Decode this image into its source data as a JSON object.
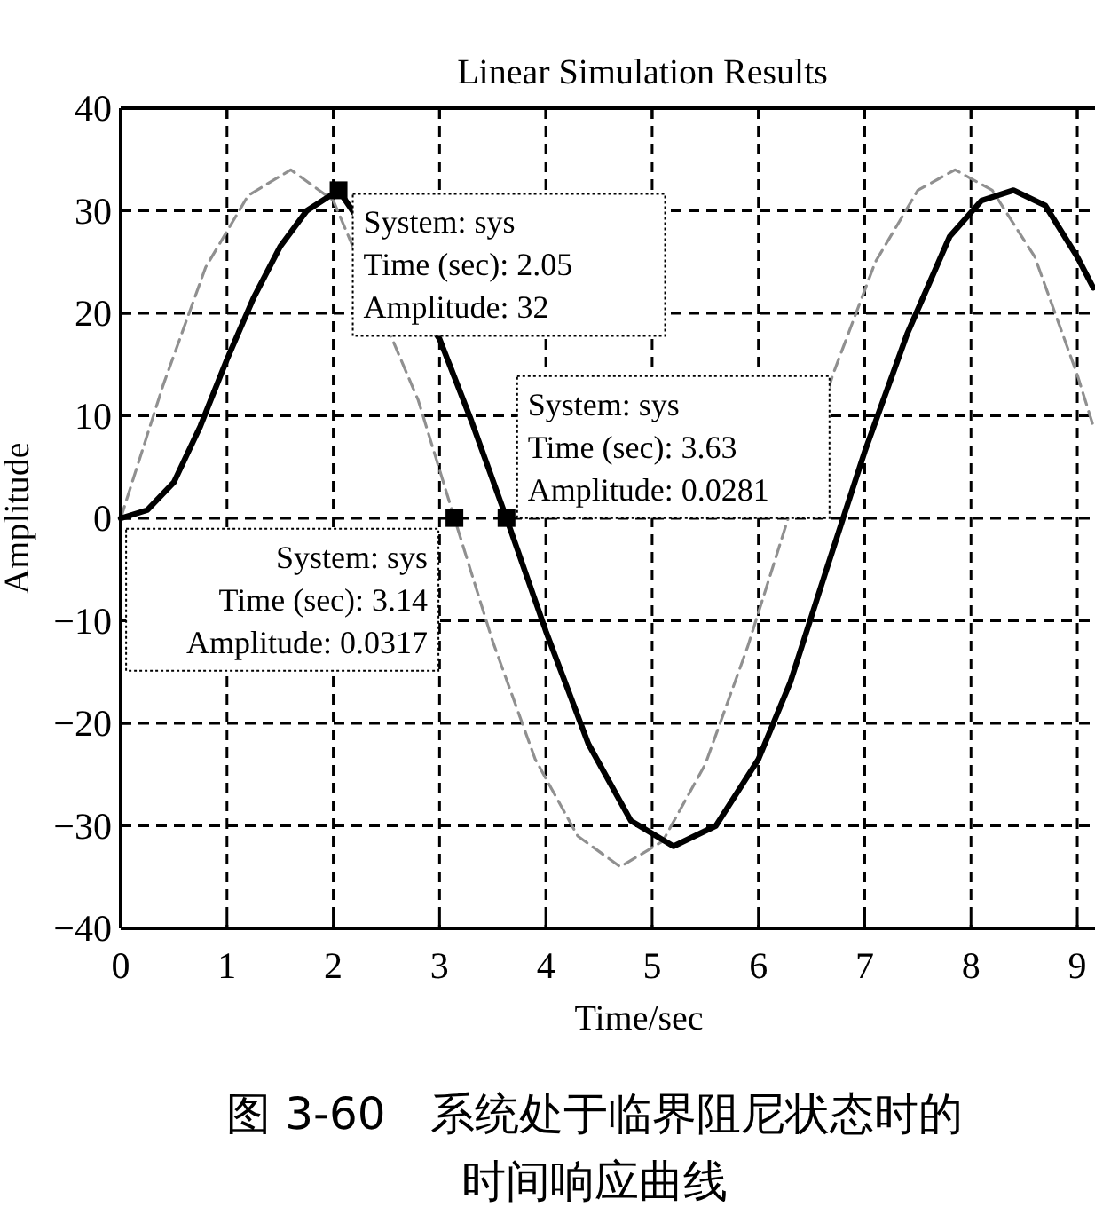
{
  "chart_data": {
    "type": "line",
    "title": "Linear Simulation Results",
    "xlabel": "Time/sec",
    "ylabel": "Amplitude",
    "xlim": [
      0,
      9.15
    ],
    "ylim": [
      -40,
      40
    ],
    "xticks": [
      0,
      1,
      2,
      3,
      4,
      5,
      6,
      7,
      8,
      9
    ],
    "yticks": [
      -40,
      -30,
      -20,
      -10,
      0,
      10,
      20,
      30,
      40
    ],
    "grid": true,
    "series": [
      {
        "color": "#909090",
        "line_style": "dashed",
        "x": [
          0,
          0.4,
          0.8,
          1.2,
          1.6,
          2.0,
          2.8,
          3.14,
          3.5,
          3.9,
          4.3,
          4.7,
          5.1,
          5.5,
          5.9,
          6.28,
          6.7,
          7.1,
          7.5,
          7.85,
          8.2,
          8.6,
          9.0,
          9.15
        ],
        "values": [
          0,
          13,
          24.5,
          31.5,
          34,
          31,
          11.5,
          0,
          -12,
          -23.5,
          -31,
          -34,
          -31.5,
          -24,
          -12.5,
          0,
          14,
          25,
          32,
          34,
          32,
          25.5,
          14,
          9
        ]
      },
      {
        "color": "#000000",
        "line_style": "solid",
        "x": [
          0,
          0.25,
          0.5,
          0.75,
          1,
          1.25,
          1.5,
          1.75,
          2.05,
          3.0,
          3.3,
          3.63,
          4.0,
          4.4,
          4.8,
          5.2,
          5.6,
          6.0,
          6.3,
          6.64,
          7.0,
          7.4,
          7.8,
          8.1,
          8.4,
          8.7,
          9.0,
          9.15
        ],
        "values": [
          0,
          0.8,
          3.5,
          9,
          15.5,
          21.5,
          26.5,
          30,
          32,
          17.5,
          9.5,
          0,
          -11,
          -22,
          -29.5,
          -32,
          -30,
          -23.5,
          -16,
          -5,
          6.5,
          18,
          27.5,
          31,
          32,
          30.5,
          25.5,
          22.5
        ]
      }
    ],
    "annotations": [
      {
        "text": "System: sys\nTime (sec): 2.05\nAmplitude: 32",
        "x": 2.05,
        "y": 32
      },
      {
        "text": "System: sys\nTime (sec): 3.63\nAmplitude: 0.0281",
        "x": 3.63,
        "y": 0.0281
      },
      {
        "text": "System: sys\nTime (sec): 3.14\nAmplitude: 0.0317",
        "x": 3.14,
        "y": 0.0317
      },
      "图 3-60　系统处于临界阻尼状态时的时间响应曲线"
    ]
  }
}
